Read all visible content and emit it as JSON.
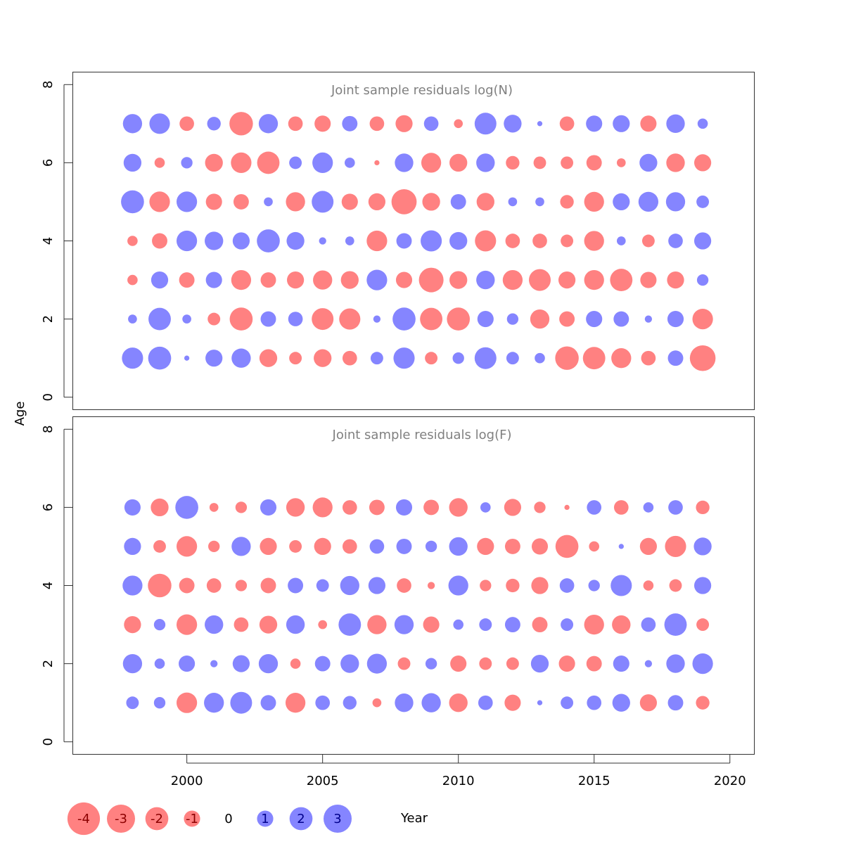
{
  "chart_data": {
    "type": "scatter",
    "subtype": "bubble",
    "xlabel": "Year",
    "ylabel": "Age",
    "colors": {
      "positive": "#7070ff",
      "negative": "#ff6b6b",
      "legend_text_positive": "#00008b",
      "legend_text_negative": "#8b0000"
    },
    "x_ticks": [
      "2000",
      "2005",
      "2010",
      "2015",
      "2020"
    ],
    "y_ticks": [
      "0",
      "2",
      "4",
      "6",
      "8"
    ],
    "xlim": [
      1995.8,
      2020.9
    ],
    "years": [
      1998,
      1999,
      2000,
      2001,
      2002,
      2003,
      2004,
      2005,
      2006,
      2007,
      2008,
      2009,
      2010,
      2011,
      2012,
      2013,
      2014,
      2015,
      2016,
      2017,
      2018,
      2019
    ],
    "legend": {
      "values": [
        -4,
        -3,
        -2,
        -1,
        0,
        1,
        2,
        3
      ],
      "labels": [
        "-4",
        "-3",
        "-2",
        "-1",
        "0",
        "1",
        "2",
        "3"
      ]
    },
    "panels": [
      {
        "title": "Joint sample residuals log(N)",
        "ylim": [
          -0.32,
          8.32
        ],
        "ages": [
          1,
          2,
          3,
          4,
          5,
          6,
          7
        ],
        "residuals": [
          [
            1.7,
            2.0,
            0.1,
            1.1,
            1.4,
            -1.2,
            -0.6,
            -1.2,
            -0.8,
            0.6,
            1.7,
            -0.6,
            0.5,
            1.8,
            0.6,
            0.4,
            -2.1,
            -1.9,
            -1.5,
            -0.8,
            0.9,
            -2.5
          ],
          [
            0.3,
            1.9,
            0.3,
            -0.6,
            -2.0,
            0.9,
            0.8,
            -1.8,
            -1.7,
            0.2,
            2.0,
            -1.9,
            -2.0,
            1.0,
            0.5,
            -1.4,
            -0.9,
            1.0,
            0.9,
            0.2,
            1.0,
            -1.6
          ],
          [
            -0.4,
            1.1,
            -0.9,
            1.0,
            -1.5,
            -0.9,
            -1.1,
            -1.4,
            -1.2,
            1.6,
            -1.0,
            -2.3,
            -1.2,
            1.3,
            -1.5,
            -1.8,
            -1.1,
            -1.5,
            -1.9,
            -1.0,
            -1.1,
            0.5
          ],
          [
            -0.4,
            -0.9,
            1.6,
            1.3,
            1.1,
            2.0,
            1.2,
            0.2,
            0.3,
            -1.6,
            0.9,
            1.7,
            1.2,
            -1.7,
            -0.8,
            -0.8,
            -0.6,
            -1.5,
            0.3,
            -0.6,
            0.8,
            1.1
          ],
          [
            2.0,
            -1.6,
            1.6,
            -1.0,
            -0.9,
            0.3,
            -1.4,
            1.8,
            -1.0,
            -1.1,
            -2.4,
            -1.2,
            0.9,
            -1.2,
            0.3,
            0.3,
            -0.7,
            -1.5,
            1.1,
            1.5,
            1.4,
            0.6
          ],
          [
            1.2,
            -0.4,
            0.5,
            -1.2,
            -1.6,
            -1.9,
            0.6,
            1.6,
            0.4,
            -0.1,
            1.3,
            -1.5,
            -1.2,
            1.3,
            -0.7,
            -0.6,
            -0.6,
            -0.9,
            -0.3,
            1.2,
            -1.3,
            -1.1
          ],
          [
            1.4,
            1.6,
            -0.8,
            0.7,
            -2.1,
            1.4,
            -0.8,
            -1.0,
            0.9,
            -0.8,
            -1.1,
            0.8,
            -0.3,
            1.8,
            1.2,
            0.1,
            -0.8,
            1.0,
            1.1,
            -1.0,
            1.3,
            0.4
          ]
        ]
      },
      {
        "title": "Joint sample residuals log(F)",
        "ylim": [
          -0.32,
          8.32
        ],
        "ages": [
          1,
          2,
          3,
          4,
          5,
          6
        ],
        "residuals": [
          [
            0.6,
            0.5,
            -1.6,
            1.5,
            1.8,
            0.9,
            -1.5,
            0.8,
            0.7,
            -0.3,
            1.3,
            1.4,
            -1.3,
            0.8,
            -1.0,
            0.1,
            0.6,
            0.8,
            1.2,
            -1.1,
            0.9,
            -0.7
          ],
          [
            1.4,
            0.4,
            1.0,
            0.2,
            1.1,
            1.4,
            -0.4,
            0.9,
            1.3,
            1.5,
            -0.6,
            0.5,
            -1.0,
            -0.6,
            -0.6,
            1.2,
            -1.0,
            -0.9,
            1.0,
            0.2,
            1.3,
            1.6
          ],
          [
            -1.1,
            0.5,
            -1.6,
            1.3,
            -0.8,
            -1.2,
            1.3,
            -0.3,
            1.9,
            -1.4,
            1.4,
            -1.0,
            0.4,
            0.6,
            0.9,
            -0.9,
            0.6,
            -1.5,
            -1.3,
            0.8,
            1.9,
            -0.6
          ],
          [
            1.5,
            -2.1,
            -0.9,
            -0.8,
            -0.5,
            -0.9,
            0.9,
            0.6,
            1.4,
            1.1,
            -0.8,
            -0.2,
            1.5,
            -0.5,
            -0.7,
            -1.1,
            0.8,
            0.5,
            1.7,
            -0.4,
            -0.6,
            1.1
          ],
          [
            1.1,
            -0.6,
            -1.6,
            -0.5,
            1.4,
            -1.1,
            -0.6,
            -1.1,
            -0.8,
            0.8,
            0.9,
            0.5,
            1.3,
            -1.1,
            -0.9,
            -1.0,
            -2.0,
            -0.4,
            0.1,
            -1.1,
            -1.7,
            1.2
          ],
          [
            1.0,
            -1.2,
            2.0,
            -0.3,
            -0.5,
            1.0,
            -1.3,
            -1.5,
            -0.8,
            -0.9,
            1.0,
            -0.9,
            -1.3,
            0.4,
            -1.1,
            -0.5,
            -0.1,
            0.8,
            -0.8,
            0.4,
            0.8,
            -0.7
          ]
        ]
      }
    ]
  }
}
